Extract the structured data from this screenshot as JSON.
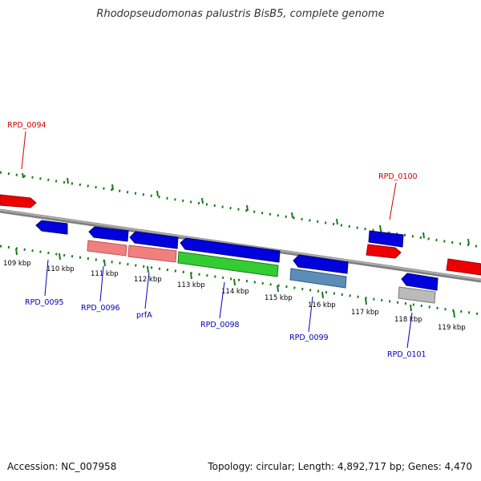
{
  "title": "Rhodopseudomonas palustris BisB5, complete genome",
  "footer": {
    "accession": "Accession: NC_007958",
    "summary": "Topology: circular; Length: 4,892,717 bp; Genes: 4,470"
  },
  "colors": {
    "backbone": "#808080",
    "ticks": "#1a7a1a",
    "forward_gene": "#ee0000",
    "reverse_gene": "#0000dd",
    "forward_label": "#cc0000",
    "reverse_label": "#0000bb"
  },
  "scale": {
    "kbp_labels": [
      "109 kbp",
      "110 kbp",
      "111 kbp",
      "112 kbp",
      "113 kbp",
      "114 kbp",
      "115 kbp",
      "116 kbp",
      "117 kbp",
      "118 kbp",
      "119 kbp"
    ]
  },
  "genes": {
    "forward": [
      {
        "id": "RPD_0094",
        "label": "RPD_0094"
      },
      {
        "id": "RPD_0100",
        "label": "RPD_0100"
      }
    ],
    "reverse": [
      {
        "id": "RPD_0095",
        "label": "RPD_0095"
      },
      {
        "id": "RPD_0096",
        "label": "RPD_0096"
      },
      {
        "id": "prfA",
        "label": "prfA"
      },
      {
        "id": "RPD_0098",
        "label": "RPD_0098"
      },
      {
        "id": "RPD_0099",
        "label": "RPD_0099"
      },
      {
        "id": "RPD_0101",
        "label": "RPD_0101"
      }
    ]
  },
  "features": {
    "colors": [
      "#f08080",
      "#f08080",
      "#33cc33",
      "#5b8db8",
      "#bbbbbb"
    ]
  }
}
